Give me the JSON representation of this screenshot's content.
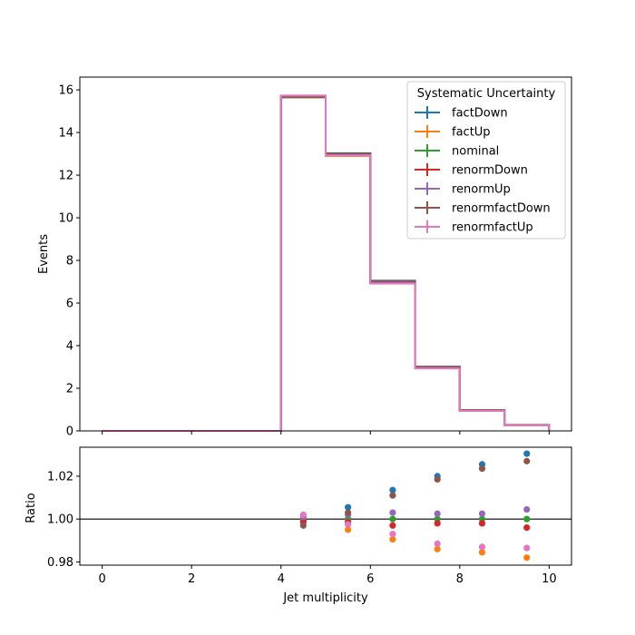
{
  "chart_data": [
    {
      "type": "line",
      "panel": "main",
      "step_style": "stairs",
      "ylabel": "Events",
      "xlim": [
        -0.5,
        10.5
      ],
      "ylim": [
        0,
        16.6
      ],
      "x_ticks": [
        0,
        2,
        4,
        6,
        8,
        10
      ],
      "y_ticks": [
        0,
        2,
        4,
        6,
        8,
        10,
        12,
        14,
        16
      ],
      "bin_edges": [
        0,
        1,
        2,
        3,
        4,
        5,
        6,
        7,
        8,
        9,
        10
      ],
      "legend": {
        "title": "Systematic Uncertainty",
        "placement": "top-right"
      },
      "series": [
        {
          "name": "factDown",
          "color": "#1f77b4",
          "values": [
            0,
            0,
            0,
            0,
            15.72,
            13.03,
            7.05,
            3.01,
            0.98,
            0.28
          ]
        },
        {
          "name": "factUp",
          "color": "#ff7f0e",
          "values": [
            0,
            0,
            0,
            0,
            15.68,
            12.9,
            6.93,
            2.96,
            0.94,
            0.27
          ]
        },
        {
          "name": "nominal",
          "color": "#2ca02c",
          "values": [
            0,
            0,
            0,
            0,
            15.7,
            12.97,
            6.96,
            2.96,
            0.96,
            0.27
          ]
        },
        {
          "name": "renormDown",
          "color": "#d62728",
          "values": [
            0,
            0,
            0,
            0,
            15.7,
            12.96,
            6.94,
            2.95,
            0.95,
            0.27
          ]
        },
        {
          "name": "renormUp",
          "color": "#9467bd",
          "values": [
            0,
            0,
            0,
            0,
            15.71,
            12.99,
            6.98,
            2.97,
            0.96,
            0.27
          ]
        },
        {
          "name": "renormfactDown",
          "color": "#8c564b",
          "values": [
            0,
            0,
            0,
            0,
            15.65,
            13.01,
            7.03,
            3.01,
            0.98,
            0.28
          ]
        },
        {
          "name": "renormfactUp",
          "color": "#e377c2",
          "values": [
            0,
            0,
            0,
            0,
            15.74,
            12.93,
            6.91,
            2.93,
            0.94,
            0.27
          ]
        }
      ]
    },
    {
      "type": "scatter",
      "panel": "ratio",
      "xlabel": "Jet multiplicity",
      "ylabel": "Ratio",
      "xlim": [
        -0.5,
        10.5
      ],
      "ylim": [
        0.9785,
        1.0335
      ],
      "x_ticks": [
        0,
        2,
        4,
        6,
        8,
        10
      ],
      "y_ticks": [
        0.98,
        1.0,
        1.02
      ],
      "y_tick_labels": [
        "0.98",
        "1.00",
        "1.02"
      ],
      "reference_line": 1.0,
      "x": [
        4.5,
        5.5,
        6.5,
        7.5,
        8.5,
        9.5
      ],
      "series": [
        {
          "name": "factDown",
          "color": "#1f77b4",
          "values": [
            0.9985,
            1.0055,
            1.0135,
            1.02,
            1.0255,
            1.0305
          ]
        },
        {
          "name": "factUp",
          "color": "#ff7f0e",
          "values": [
            0.999,
            0.995,
            0.9905,
            0.986,
            0.9845,
            0.982
          ]
        },
        {
          "name": "nominal",
          "color": "#2ca02c",
          "values": [
            1.0,
            1.0,
            1.0,
            1.0,
            1.0,
            1.0
          ]
        },
        {
          "name": "renormDown",
          "color": "#d62728",
          "values": [
            0.999,
            0.9985,
            0.997,
            0.998,
            0.998,
            0.996
          ]
        },
        {
          "name": "renormUp",
          "color": "#9467bd",
          "values": [
            1.001,
            1.002,
            1.003,
            1.0025,
            1.0025,
            1.0045
          ]
        },
        {
          "name": "renormfactDown",
          "color": "#8c564b",
          "values": [
            0.997,
            1.003,
            1.011,
            1.0185,
            1.0235,
            1.027
          ]
        },
        {
          "name": "renormfactUp",
          "color": "#e377c2",
          "values": [
            1.002,
            0.9975,
            0.993,
            0.9885,
            0.987,
            0.9865
          ]
        }
      ]
    }
  ]
}
